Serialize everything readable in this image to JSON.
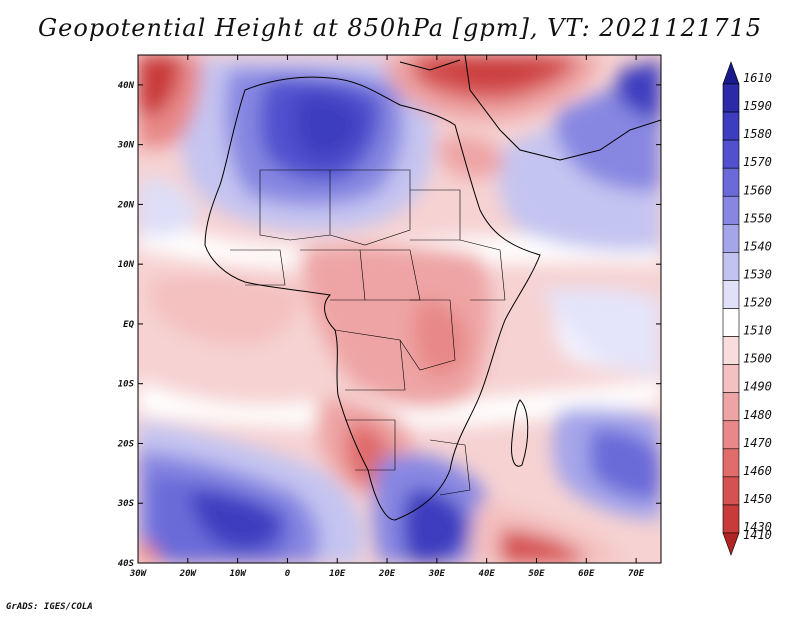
{
  "title": "Geopotential Height at 850hPa [gpm], VT: 2021121715",
  "footer": "GrADS: IGES/COLA",
  "map": {
    "region": "Africa",
    "lon_range": [
      -30,
      75
    ],
    "lat_range": [
      -40,
      45
    ],
    "lon_ticks": [
      {
        "lon": -30,
        "label": "30W"
      },
      {
        "lon": -20,
        "label": "20W"
      },
      {
        "lon": -10,
        "label": "10W"
      },
      {
        "lon": 0,
        "label": "0"
      },
      {
        "lon": 10,
        "label": "10E"
      },
      {
        "lon": 20,
        "label": "20E"
      },
      {
        "lon": 30,
        "label": "30E"
      },
      {
        "lon": 40,
        "label": "40E"
      },
      {
        "lon": 50,
        "label": "50E"
      },
      {
        "lon": 60,
        "label": "60E"
      },
      {
        "lon": 70,
        "label": "70E"
      }
    ],
    "lat_ticks": [
      {
        "lat": 40,
        "label": "40N"
      },
      {
        "lat": 30,
        "label": "30N"
      },
      {
        "lat": 20,
        "label": "20N"
      },
      {
        "lat": 10,
        "label": "10N"
      },
      {
        "lat": 0,
        "label": "EQ"
      },
      {
        "lat": -10,
        "label": "10S"
      },
      {
        "lat": -20,
        "label": "20S"
      },
      {
        "lat": -30,
        "label": "30S"
      },
      {
        "lat": -40,
        "label": "40S"
      }
    ]
  },
  "colorbar": {
    "levels": [
      {
        "label": "1610",
        "color": "#1a1a8c"
      },
      {
        "label": "1590",
        "color": "#2b2ba8"
      },
      {
        "label": "1580",
        "color": "#3d3dc0"
      },
      {
        "label": "1570",
        "color": "#5151cf"
      },
      {
        "label": "1560",
        "color": "#6a6ad9"
      },
      {
        "label": "1550",
        "color": "#8787e2"
      },
      {
        "label": "1540",
        "color": "#a5a5ea"
      },
      {
        "label": "1530",
        "color": "#c3c3f1"
      },
      {
        "label": "1520",
        "color": "#e0e0f8"
      },
      {
        "label": "1510",
        "color": "#ffffff"
      },
      {
        "label": "1500",
        "color": "#f9dcdc"
      },
      {
        "label": "1490",
        "color": "#f4c0c0"
      },
      {
        "label": "1480",
        "color": "#eea4a4"
      },
      {
        "label": "1470",
        "color": "#e88888"
      },
      {
        "label": "1460",
        "color": "#e06c6c"
      },
      {
        "label": "1450",
        "color": "#d65252"
      },
      {
        "label": "1430",
        "color": "#c93b3b"
      },
      {
        "label": "1410",
        "color": "#b02424"
      }
    ]
  }
}
